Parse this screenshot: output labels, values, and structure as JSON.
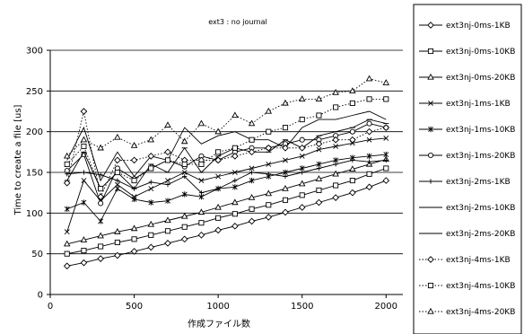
{
  "chart_data": {
    "type": "line",
    "title": "ext3 : no journal",
    "xlabel": "作成ファイル数",
    "ylabel": "Time to create a file [us]",
    "xlim": [
      0,
      2100
    ],
    "ylim": [
      0,
      300
    ],
    "xticks": [
      0,
      500,
      1000,
      1500,
      2000
    ],
    "yticks": [
      0,
      50,
      100,
      150,
      200,
      250,
      300
    ],
    "grid": "horizontal",
    "legend_position": "right",
    "x": [
      100,
      200,
      300,
      400,
      500,
      600,
      700,
      800,
      900,
      1000,
      1100,
      1200,
      1300,
      1400,
      1500,
      1600,
      1700,
      1800,
      1900,
      2000
    ],
    "series": [
      {
        "name": "ext3nj-0ms-1KB",
        "marker": "diamond",
        "dash": "solid",
        "values": [
          35,
          39,
          44,
          48,
          53,
          58,
          63,
          68,
          73,
          79,
          84,
          90,
          95,
          101,
          107,
          113,
          119,
          125,
          132,
          140
        ]
      },
      {
        "name": "ext3nj-0ms-10KB",
        "marker": "square",
        "dash": "solid",
        "values": [
          50,
          54,
          59,
          64,
          68,
          73,
          78,
          83,
          88,
          94,
          99,
          105,
          110,
          116,
          122,
          128,
          134,
          140,
          148,
          155
        ]
      },
      {
        "name": "ext3nj-0ms-20KB",
        "marker": "triangle",
        "dash": "solid",
        "values": [
          62,
          67,
          72,
          77,
          81,
          86,
          91,
          96,
          101,
          107,
          113,
          119,
          124,
          130,
          136,
          142,
          148,
          154,
          160,
          166
        ]
      },
      {
        "name": "ext3nj-1ms-1KB",
        "marker": "x",
        "dash": "solid",
        "values": [
          77,
          140,
          115,
          135,
          120,
          130,
          140,
          150,
          140,
          145,
          150,
          155,
          160,
          165,
          170,
          178,
          182,
          186,
          190,
          192
        ]
      },
      {
        "name": "ext3nj-1ms-10KB",
        "marker": "star",
        "dash": "solid",
        "values": [
          105,
          113,
          90,
          130,
          117,
          113,
          115,
          123,
          120,
          130,
          132,
          140,
          145,
          150,
          155,
          160,
          165,
          168,
          170,
          172
        ]
      },
      {
        "name": "ext3nj-1ms-20KB",
        "marker": "circle",
        "dash": "solid",
        "values": [
          152,
          172,
          112,
          155,
          142,
          155,
          165,
          157,
          170,
          165,
          175,
          180,
          180,
          185,
          190,
          190,
          195,
          200,
          210,
          205
        ]
      },
      {
        "name": "ext3nj-2ms-1KB",
        "marker": "plus",
        "dash": "solid",
        "values": [
          148,
          150,
          147,
          140,
          130,
          138,
          135,
          145,
          125,
          130,
          140,
          150,
          148,
          145,
          150,
          155,
          160,
          165,
          163,
          165
        ]
      },
      {
        "name": "ext3nj-2ms-10KB",
        "marker": "bar",
        "dash": "solid",
        "values": [
          140,
          175,
          130,
          150,
          130,
          160,
          150,
          180,
          150,
          170,
          180,
          175,
          175,
          190,
          180,
          195,
          200,
          205,
          215,
          210
        ]
      },
      {
        "name": "ext3nj-2ms-20KB",
        "marker": "none",
        "dash": "solid",
        "values": [
          165,
          205,
          140,
          175,
          145,
          170,
          165,
          205,
          185,
          195,
          200,
          190,
          190,
          180,
          205,
          215,
          215,
          220,
          225,
          215
        ]
      },
      {
        "name": "ext3nj-4ms-1KB",
        "marker": "diamond",
        "dash": "dotted",
        "values": [
          137,
          225,
          120,
          165,
          165,
          170,
          175,
          165,
          165,
          165,
          170,
          175,
          180,
          180,
          180,
          185,
          190,
          190,
          200,
          205
        ]
      },
      {
        "name": "ext3nj-4ms-10KB",
        "marker": "square",
        "dash": "dotted",
        "values": [
          160,
          182,
          130,
          150,
          140,
          155,
          165,
          160,
          160,
          175,
          180,
          190,
          200,
          205,
          215,
          220,
          230,
          235,
          240,
          240
        ]
      },
      {
        "name": "ext3nj-4ms-20KB",
        "marker": "triangle",
        "dash": "dotted",
        "values": [
          170,
          190,
          180,
          193,
          183,
          190,
          208,
          188,
          210,
          200,
          220,
          210,
          225,
          235,
          240,
          240,
          248,
          250,
          265,
          260
        ]
      }
    ]
  }
}
